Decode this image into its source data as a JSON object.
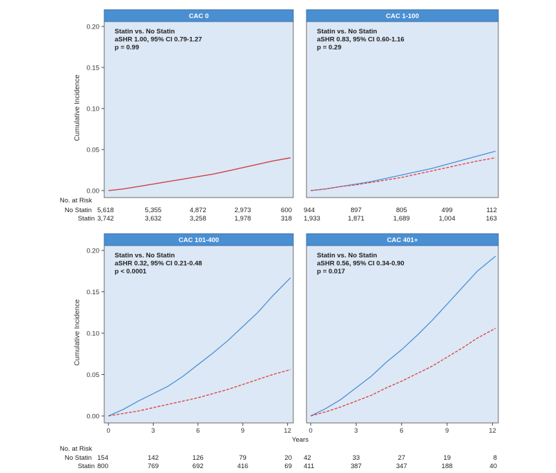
{
  "figure": {
    "y_axis_label": "Cumulative Incidence",
    "x_axis_label": "Years",
    "at_risk_title": "No. at Risk",
    "row_labels": [
      "No Statin",
      "Statin"
    ]
  },
  "colors": {
    "no_statin": "#4a90d9",
    "statin": "#e03c3c",
    "panel_bg": "#dce8f5",
    "header_bg": "#4a8fd2"
  },
  "chart_data": [
    {
      "type": "line",
      "title": "CAC 0",
      "annotation": [
        "Statin vs. No Statin",
        "aSHR 1.00, 95% CI 0.79-1.27",
        "p = 0.99"
      ],
      "xlim": [
        0,
        12.2
      ],
      "ylim": [
        0,
        0.2
      ],
      "yticks": [
        "0.00",
        "0.05",
        "0.10",
        "0.15",
        "0.20"
      ],
      "xticks": [],
      "series": [
        {
          "key": "no_statin",
          "x": [
            0,
            1,
            2,
            3,
            4,
            5,
            6,
            7,
            8,
            9,
            10,
            11,
            12.2
          ],
          "y": [
            0,
            0.002,
            0.005,
            0.008,
            0.011,
            0.014,
            0.017,
            0.02,
            0.024,
            0.028,
            0.032,
            0.036,
            0.04
          ]
        },
        {
          "key": "statin",
          "x": [
            0,
            1,
            2,
            3,
            4,
            5,
            6,
            7,
            8,
            9,
            10,
            11,
            12.2
          ],
          "y": [
            0,
            0.002,
            0.005,
            0.008,
            0.011,
            0.014,
            0.017,
            0.02,
            0.024,
            0.028,
            0.032,
            0.036,
            0.04
          ]
        }
      ],
      "at_risk": {
        "no_statin": [
          "5,618",
          "5,355",
          "4,872",
          "2,973",
          "600"
        ],
        "statin": [
          "3,742",
          "3,632",
          "3,258",
          "1,978",
          "318"
        ]
      }
    },
    {
      "type": "line",
      "title": "CAC 1-100",
      "annotation": [
        "Statin vs. No Statin",
        "aSHR 0.83, 95% CI 0.60-1.16",
        "p = 0.29"
      ],
      "xlim": [
        0,
        12.2
      ],
      "ylim": [
        0,
        0.2
      ],
      "yticks": [],
      "xticks": [],
      "series": [
        {
          "key": "no_statin",
          "x": [
            0,
            1,
            2,
            3,
            4,
            5,
            6,
            7,
            8,
            9,
            10,
            11,
            12.2
          ],
          "y": [
            0,
            0.002,
            0.005,
            0.008,
            0.011,
            0.015,
            0.019,
            0.023,
            0.027,
            0.032,
            0.037,
            0.042,
            0.048
          ]
        },
        {
          "key": "statin",
          "x": [
            0,
            1,
            2,
            3,
            4,
            5,
            6,
            7,
            8,
            9,
            10,
            11,
            12.2
          ],
          "y": [
            0,
            0.002,
            0.005,
            0.007,
            0.01,
            0.013,
            0.016,
            0.02,
            0.024,
            0.028,
            0.032,
            0.036,
            0.04
          ]
        }
      ],
      "at_risk": {
        "no_statin": [
          "944",
          "897",
          "805",
          "499",
          "112"
        ],
        "statin": [
          "1,933",
          "1,871",
          "1,689",
          "1,004",
          "163"
        ]
      }
    },
    {
      "type": "line",
      "title": "CAC 101-400",
      "annotation": [
        "Statin vs. No Statin",
        "aSHR 0.32, 95% CI 0.21-0.48",
        "p < 0.0001"
      ],
      "xlim": [
        0,
        12.2
      ],
      "ylim": [
        0,
        0.2
      ],
      "yticks": [
        "0.00",
        "0.05",
        "0.10",
        "0.15",
        "0.20"
      ],
      "xticks": [
        "0",
        "3",
        "6",
        "9",
        "12"
      ],
      "series": [
        {
          "key": "no_statin",
          "x": [
            0,
            1,
            2,
            3,
            4,
            5,
            6,
            7,
            8,
            9,
            10,
            11,
            12.2
          ],
          "y": [
            0,
            0.008,
            0.018,
            0.027,
            0.036,
            0.048,
            0.062,
            0.076,
            0.091,
            0.108,
            0.125,
            0.145,
            0.167
          ]
        },
        {
          "key": "statin",
          "x": [
            0,
            1,
            2,
            3,
            4,
            5,
            6,
            7,
            8,
            9,
            10,
            11,
            12.2
          ],
          "y": [
            0,
            0.003,
            0.006,
            0.01,
            0.014,
            0.018,
            0.022,
            0.027,
            0.032,
            0.038,
            0.044,
            0.05,
            0.056
          ]
        }
      ],
      "at_risk": {
        "no_statin": [
          "154",
          "142",
          "126",
          "79",
          "20"
        ],
        "statin": [
          "800",
          "769",
          "692",
          "416",
          "69"
        ]
      }
    },
    {
      "type": "line",
      "title": "CAC 401+",
      "annotation": [
        "Statin vs. No Statin",
        "aSHR 0.56, 95% CI 0.34-0.90",
        "p = 0.017"
      ],
      "xlim": [
        0,
        12.2
      ],
      "ylim": [
        0,
        0.2
      ],
      "yticks": [],
      "xticks": [
        "0",
        "3",
        "6",
        "9",
        "12"
      ],
      "series": [
        {
          "key": "no_statin",
          "x": [
            0,
            1,
            2,
            3,
            4,
            5,
            6,
            7,
            8,
            9,
            10,
            11,
            12.2
          ],
          "y": [
            0,
            0.009,
            0.02,
            0.034,
            0.048,
            0.065,
            0.08,
            0.097,
            0.115,
            0.135,
            0.155,
            0.175,
            0.193
          ]
        },
        {
          "key": "statin",
          "x": [
            0,
            1,
            2,
            3,
            4,
            5,
            6,
            7,
            8,
            9,
            10,
            11,
            12.2
          ],
          "y": [
            0,
            0.005,
            0.011,
            0.018,
            0.025,
            0.034,
            0.042,
            0.051,
            0.06,
            0.071,
            0.082,
            0.094,
            0.106
          ]
        }
      ],
      "at_risk": {
        "no_statin": [
          "42",
          "33",
          "27",
          "19",
          "8"
        ],
        "statin": [
          "411",
          "387",
          "347",
          "188",
          "40"
        ]
      }
    }
  ]
}
